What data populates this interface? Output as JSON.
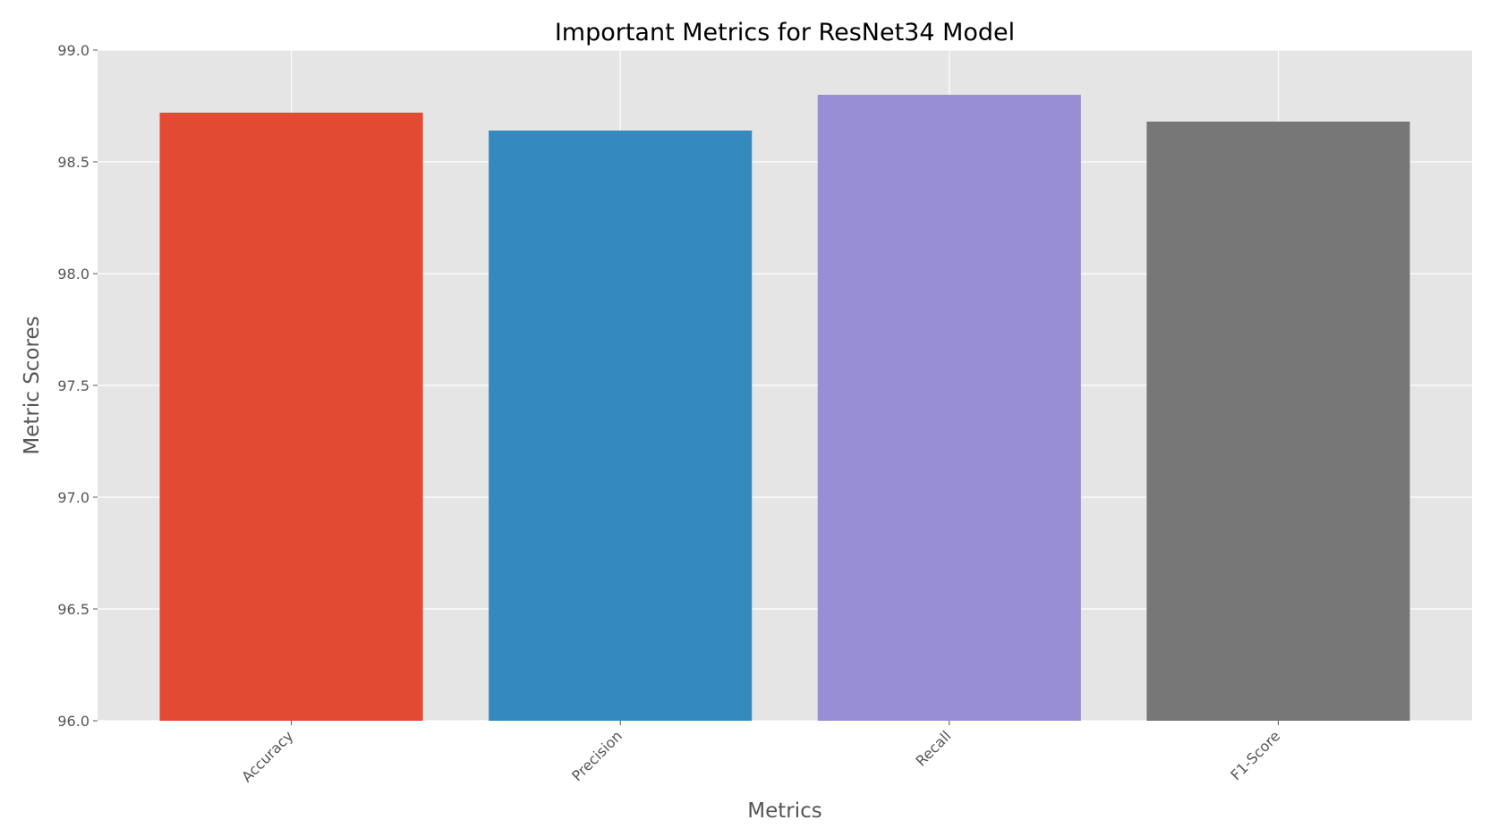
{
  "chart_data": {
    "type": "bar",
    "title": "Important Metrics for ResNet34 Model",
    "xlabel": "Metrics",
    "ylabel": "Metric Scores",
    "categories": [
      "Accuracy",
      "Precision",
      "Recall",
      "F1-Score"
    ],
    "values": [
      98.72,
      98.64,
      98.8,
      98.68
    ],
    "colors": [
      "#E24A33",
      "#348ABD",
      "#988ED5",
      "#777777"
    ],
    "ylim": [
      96.0,
      99.0
    ],
    "yticks": [
      "96.0",
      "96.5",
      "97.0",
      "97.5",
      "98.0",
      "98.5",
      "99.0"
    ],
    "grid": true,
    "background": "#E5E5E5",
    "grid_color": "#FFFFFF"
  }
}
